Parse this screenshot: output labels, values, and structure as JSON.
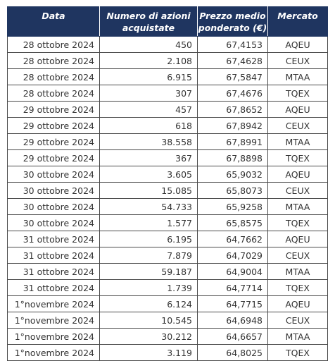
{
  "headers": {
    "date": "Data",
    "shares": "Numero di azioni acquistate",
    "price": "Prezzo medio ponderato (€)",
    "market": "Mercato"
  },
  "rows": [
    {
      "date": "28 ottobre 2024",
      "shares": "450",
      "price": "67,4153",
      "market": "AQEU"
    },
    {
      "date": "28 ottobre 2024",
      "shares": "2.108",
      "price": "67,4628",
      "market": "CEUX"
    },
    {
      "date": "28 ottobre 2024",
      "shares": "6.915",
      "price": "67,5847",
      "market": "MTAA"
    },
    {
      "date": "28 ottobre 2024",
      "shares": "307",
      "price": "67,4676",
      "market": "TQEX"
    },
    {
      "date": "29 ottobre 2024",
      "shares": "457",
      "price": "67,8652",
      "market": "AQEU"
    },
    {
      "date": "29 ottobre 2024",
      "shares": "618",
      "price": "67,8942",
      "market": "CEUX"
    },
    {
      "date": "29 ottobre 2024",
      "shares": "38.558",
      "price": "67,8991",
      "market": "MTAA"
    },
    {
      "date": "29 ottobre 2024",
      "shares": "367",
      "price": "67,8898",
      "market": "TQEX"
    },
    {
      "date": "30 ottobre 2024",
      "shares": "3.605",
      "price": "65,9032",
      "market": "AQEU"
    },
    {
      "date": "30 ottobre 2024",
      "shares": "15.085",
      "price": "65,8073",
      "market": "CEUX"
    },
    {
      "date": "30 ottobre 2024",
      "shares": "54.733",
      "price": "65,9258",
      "market": "MTAA"
    },
    {
      "date": "30 ottobre 2024",
      "shares": "1.577",
      "price": "65,8575",
      "market": "TQEX"
    },
    {
      "date": "31 ottobre 2024",
      "shares": "6.195",
      "price": "64,7662",
      "market": "AQEU"
    },
    {
      "date": "31 ottobre 2024",
      "shares": "7.879",
      "price": "64,7029",
      "market": "CEUX"
    },
    {
      "date": "31 ottobre 2024",
      "shares": "59.187",
      "price": "64,9004",
      "market": "MTAA"
    },
    {
      "date": "31 ottobre 2024",
      "shares": "1.739",
      "price": "64,7714",
      "market": "TQEX"
    },
    {
      "date": "1°novembre 2024",
      "shares": "6.124",
      "price": "64,7715",
      "market": "AQEU"
    },
    {
      "date": "1°novembre 2024",
      "shares": "10.545",
      "price": "64,6948",
      "market": "CEUX"
    },
    {
      "date": "1°novembre 2024",
      "shares": "30.212",
      "price": "64,6657",
      "market": "MTAA"
    },
    {
      "date": "1°novembre 2024",
      "shares": "3.119",
      "price": "64,8025",
      "market": "TQEX"
    }
  ]
}
